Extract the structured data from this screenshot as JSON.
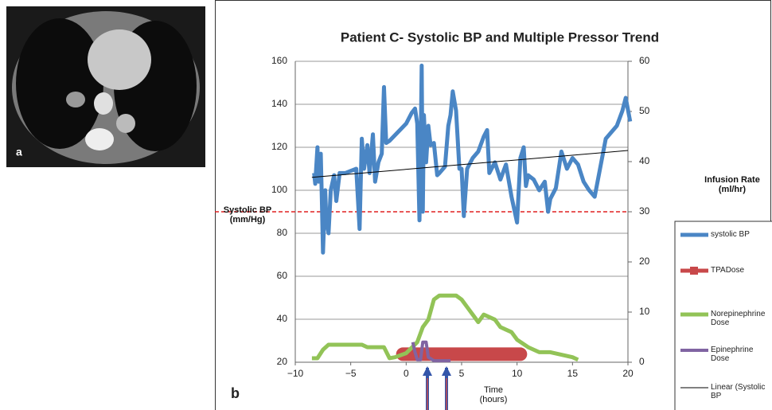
{
  "panel_labels": [
    "a",
    "b"
  ],
  "chart_data": {
    "type": "line",
    "title": "Patient C- Systolic BP and Multiple Pressor Trend",
    "x_label": "Time (hours)",
    "y_label": "Systolic BP (mm/Hg)",
    "y2_label": "Infusion Rate (ml/hr)",
    "xlim": [
      -10,
      20
    ],
    "ylim": [
      20,
      160
    ],
    "y2lim": [
      0,
      60
    ],
    "xticks": [
      {
        "value": -10,
        "label": "−10"
      },
      {
        "value": -5,
        "label": "−5"
      },
      0,
      5,
      10,
      15,
      20
    ],
    "yticks": [
      20,
      40,
      60,
      80,
      100,
      120,
      140,
      160
    ],
    "y2ticks": [
      0,
      10,
      20,
      30,
      40,
      50,
      60
    ],
    "grid": true,
    "reference_line": {
      "value": 30,
      "axis": "y2",
      "color": "#e02020"
    },
    "series": [
      {
        "name": "systolic BP",
        "color": "#4a86c5",
        "line_width": 5,
        "axis": "y",
        "x": [
          -8.3,
          -8.2,
          -8,
          -7.9,
          -7.7,
          -7.6,
          -7.5,
          -7.3,
          -7.2,
          -7,
          -6.8,
          -6.5,
          -6.3,
          -6,
          -5.5,
          -5,
          -4.5,
          -4.2,
          -4,
          -3.8,
          -3.5,
          -3.3,
          -3,
          -2.8,
          -2.5,
          -2.2,
          -2,
          -1.8,
          -1.5,
          0,
          0.5,
          0.8,
          1,
          1.2,
          1.3,
          1.4,
          1.5,
          1.6,
          1.8,
          2,
          2.2,
          2.5,
          2.8,
          3,
          3.5,
          3.8,
          4,
          4.2,
          4.5,
          4.8,
          5,
          5.2,
          5.5,
          6,
          6.5,
          7,
          7.3,
          7.5,
          8,
          8.5,
          9,
          9.5,
          10,
          10.3,
          10.6,
          10.8,
          11,
          11.5,
          12,
          12.5,
          12.8,
          13,
          13.5,
          14,
          14.5,
          15,
          15.5,
          16,
          16.5,
          17,
          18,
          19,
          19.5,
          19.8,
          20.2
        ],
        "values": [
          108,
          103,
          120,
          104,
          117,
          95,
          71,
          100,
          86,
          80,
          100,
          107,
          95,
          108,
          108,
          109,
          110,
          82,
          124,
          110,
          121,
          108,
          126,
          104,
          113,
          117,
          148,
          122,
          123,
          131,
          136,
          138,
          131,
          86,
          117,
          158,
          90,
          135,
          113,
          130,
          121,
          122,
          107,
          108,
          111,
          130,
          135,
          146,
          137,
          110,
          110,
          88,
          110,
          115,
          118,
          125,
          128,
          108,
          113,
          105,
          112,
          97,
          85,
          115,
          120,
          102,
          107,
          105,
          100,
          104,
          90,
          96,
          101,
          118,
          110,
          115,
          112,
          104,
          100,
          97,
          124,
          130,
          137,
          143,
          132
        ]
      },
      {
        "name": "TPADose",
        "color": "#c8484a",
        "line_width": 17,
        "axis": "y2",
        "x": [
          -0.3,
          10.3
        ],
        "values": [
          1.6,
          1.6
        ]
      },
      {
        "name": "Norepinephrine Dose",
        "color": "#92c357",
        "line_width": 5,
        "axis": "y2",
        "x": [
          -8.5,
          -8,
          -7.5,
          -7,
          -5,
          -4,
          -3.5,
          -2,
          -1.5,
          -1,
          0,
          1,
          1.5,
          2,
          2.5,
          3,
          4.5,
          5,
          5.5,
          6,
          6.5,
          7,
          8,
          8.5,
          9,
          9.5,
          10,
          11,
          12,
          13,
          14,
          15,
          15.5
        ],
        "values": [
          0.8,
          0.8,
          2.5,
          3.5,
          3.5,
          3.5,
          3,
          3,
          0.8,
          1,
          1.8,
          4,
          7,
          8.5,
          12.5,
          13.3,
          13.3,
          12.5,
          11,
          9.5,
          8,
          9.5,
          8.5,
          7,
          6.5,
          6,
          4.5,
          3,
          2,
          2,
          1.5,
          1,
          0.5
        ]
      },
      {
        "name": "Epinephrine Dose",
        "color": "#8064a2",
        "line_width": 4,
        "axis": "y2",
        "x": [
          0.6,
          0.8,
          1,
          1.3,
          1.5,
          1.8,
          2,
          2.5,
          4
        ],
        "values": [
          4,
          2,
          0.5,
          0.5,
          4,
          4,
          1,
          0.3,
          0.3
        ]
      },
      {
        "name": "Linear (Systolic BP",
        "color": "#000000",
        "line_width": 1,
        "axis": "y",
        "x": [
          -8.5,
          20
        ],
        "values": [
          106,
          118.5
        ]
      }
    ]
  }
}
